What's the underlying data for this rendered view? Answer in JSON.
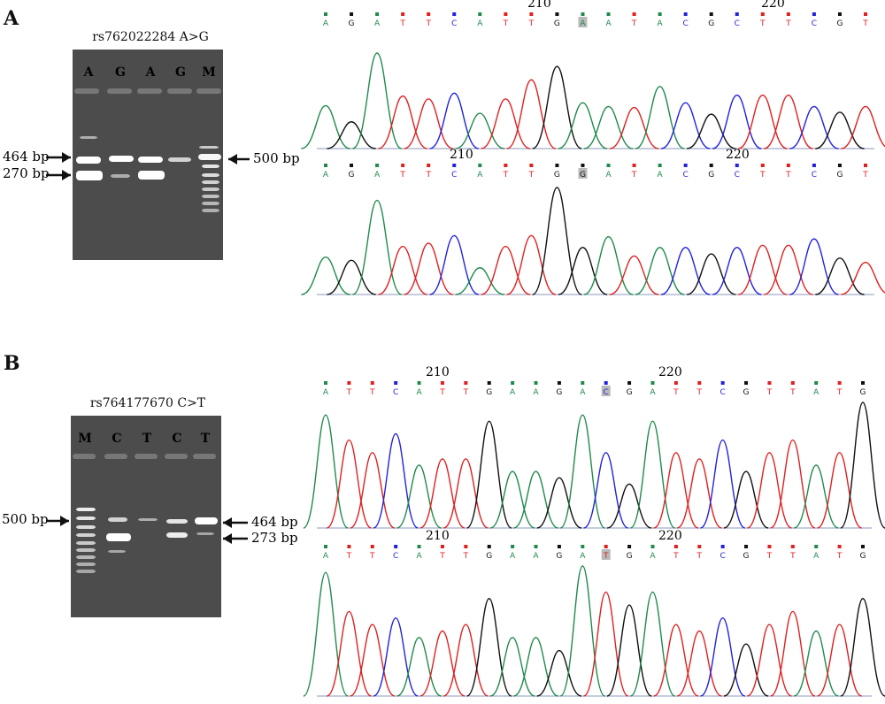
{
  "panels": [
    {
      "label": "A",
      "gel": {
        "title": "rs762022284 A>G",
        "lanes": [
          "A",
          "G",
          "A",
          "G",
          "M"
        ],
        "left_markers": [
          "464 bp",
          "270 bp"
        ],
        "right_markers": [
          "500 bp"
        ]
      },
      "chromatograms": [
        {
          "sequence": [
            "A",
            "G",
            "A",
            "T",
            "T",
            "C",
            "A",
            "T",
            "T",
            "G",
            "A",
            "A",
            "T",
            "A",
            "C",
            "G",
            "C",
            "T",
            "T",
            "C",
            "G",
            "T"
          ],
          "highlight_index": 10,
          "position_labels": [
            "210",
            "220"
          ]
        },
        {
          "sequence": [
            "A",
            "G",
            "A",
            "T",
            "T",
            "C",
            "A",
            "T",
            "T",
            "G",
            "G",
            "A",
            "T",
            "A",
            "C",
            "G",
            "C",
            "T",
            "T",
            "C",
            "G",
            "T"
          ],
          "highlight_index": 10,
          "position_labels": [
            "210",
            "220"
          ]
        }
      ]
    },
    {
      "label": "B",
      "gel": {
        "title": "rs764177670 C>T",
        "lanes": [
          "M",
          "C",
          "T",
          "C",
          "T"
        ],
        "left_markers": [
          "500 bp"
        ],
        "right_markers": [
          "464 bp",
          "273 bp"
        ]
      },
      "chromatograms": [
        {
          "sequence": [
            "A",
            "T",
            "T",
            "C",
            "A",
            "T",
            "T",
            "G",
            "A",
            "A",
            "G",
            "A",
            "C",
            "G",
            "A",
            "T",
            "T",
            "C",
            "G",
            "T",
            "T",
            "A",
            "T",
            "G"
          ],
          "highlight_index": 12,
          "position_labels": [
            "210",
            "220"
          ]
        },
        {
          "sequence": [
            "A",
            "T",
            "T",
            "C",
            "A",
            "T",
            "T",
            "G",
            "A",
            "A",
            "G",
            "A",
            "T",
            "G",
            "A",
            "T",
            "T",
            "C",
            "G",
            "T",
            "T",
            "A",
            "T",
            "G"
          ],
          "highlight_index": 12,
          "position_labels": [
            "210",
            "220"
          ]
        }
      ]
    }
  ],
  "colors": {
    "A": "#1f8a4c",
    "T": "#e02020",
    "C": "#2222dd",
    "G": "#111111",
    "gel_bg": "#4c4c4c",
    "band": "#ffffff"
  },
  "icons": [
    "arrow-right-icon",
    "arrow-left-icon"
  ]
}
